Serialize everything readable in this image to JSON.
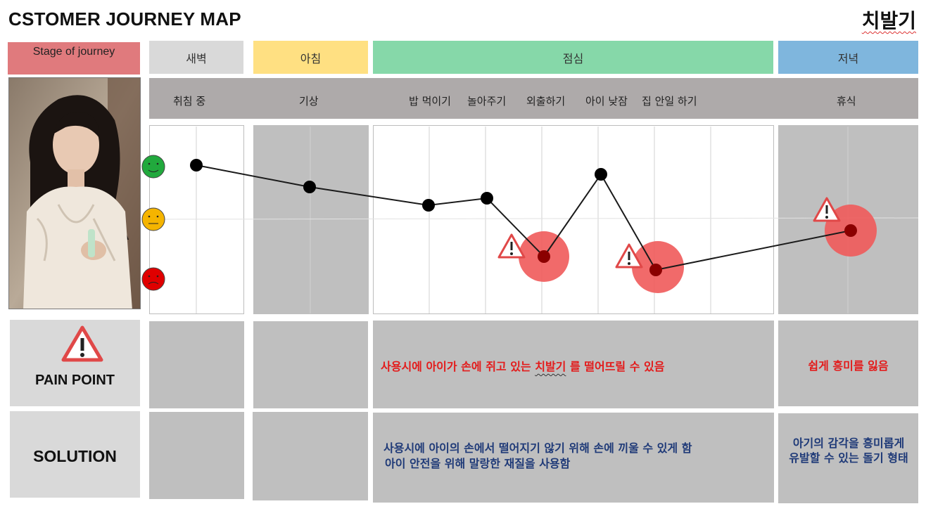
{
  "header": {
    "title": "CSTOMER JOURNEY MAP",
    "product": "치발기"
  },
  "stage_row": {
    "label": "Stage of journey",
    "stages": [
      "새벽",
      "아침",
      "점심",
      "저녁"
    ]
  },
  "activities": [
    "취침 중",
    "기상",
    "밥 먹이기",
    "놀아주기",
    "외출하기",
    "아이 낮잠",
    "집 안일 하기",
    "휴식"
  ],
  "faces": [
    "happy-face-icon",
    "neutral-face-icon",
    "sad-face-icon"
  ],
  "journey_points": [
    {
      "activity": "취침 중",
      "level": "happy",
      "pain": false
    },
    {
      "activity": "기상",
      "level": "between happy and neutral",
      "pain": false
    },
    {
      "activity": "밥 먹이기",
      "level": "slightly above neutral",
      "pain": false
    },
    {
      "activity": "놀아주기",
      "level": "slightly above neutral",
      "pain": false
    },
    {
      "activity": "외출하기",
      "level": "between neutral and sad",
      "pain": true
    },
    {
      "activity": "아이 낮잠",
      "level": "between happy and neutral",
      "pain": false
    },
    {
      "activity": "집 안일 하기",
      "level": "near sad",
      "pain": true
    },
    {
      "activity": "휴식",
      "level": "slightly below neutral",
      "pain": true
    }
  ],
  "pain_point": {
    "label": "PAIN POINT",
    "lunch": {
      "before": "사용시에 아이가 손에 쥐고 있는 ",
      "product": "치발기",
      "after": " 를 떨어뜨릴 수 있음"
    },
    "evening": "쉽게 흥미를 잃음"
  },
  "solution": {
    "label": "SOLUTION",
    "lunch_line1": "사용시에  아이의 손에서 떨어지기 않기 위해 손에 끼울 수 있게 함",
    "lunch_line2": "아이 안전을 위해 말랑한 재질을 사용함",
    "evening": "아기의 감각을 흥미롭게 유발할 수 있는 돌기 형태"
  },
  "colors": {
    "stage_label": "#e07a7d",
    "dawn": "#d9d9d9",
    "morning": "#ffe082",
    "lunch": "#86d8a9",
    "evening": "#7fb6dd",
    "pain_text": "#e31b1b",
    "solution_text": "#1f3a78",
    "pain_circle": "#f05a5a"
  }
}
